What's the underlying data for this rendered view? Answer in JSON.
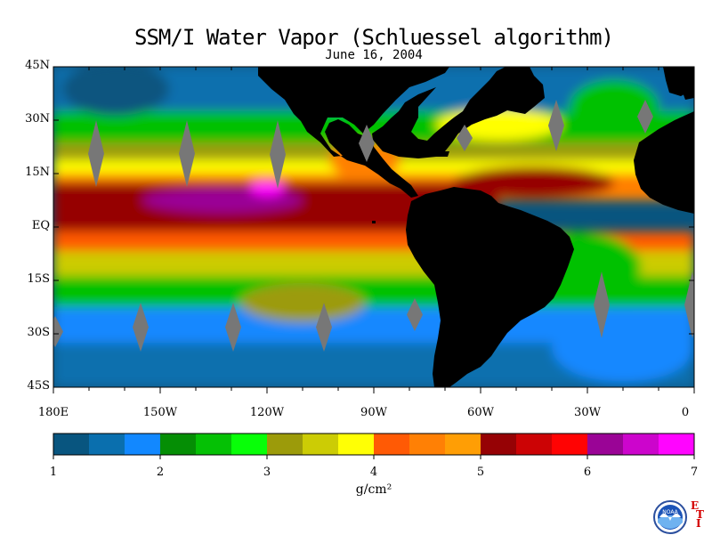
{
  "title": "SSM/I Water Vapor (Schluessel algorithm)",
  "date": "June 16, 2004",
  "map": {
    "lat_labels": [
      "45N",
      "30N",
      "15N",
      "EQ",
      "15S",
      "30S",
      "45S"
    ],
    "lat_values": [
      45,
      30,
      15,
      0,
      -15,
      -30,
      -45
    ],
    "lon_labels": [
      "180E",
      "150W",
      "120W",
      "90W",
      "60W",
      "30W",
      "0"
    ],
    "lon_values": [
      -180,
      -150,
      -120,
      -90,
      -60,
      -30,
      0
    ],
    "lon_range": [
      -180,
      0
    ],
    "lat_range": [
      -45,
      45
    ],
    "land_color": "#000000",
    "swath_gap_color": "#777777"
  },
  "colorbar": {
    "ticks": [
      "1",
      "2",
      "3",
      "4",
      "5",
      "6",
      "7"
    ],
    "range": [
      1,
      7
    ],
    "units": "g/cm²",
    "colors": [
      "#08557f",
      "#0a6fae",
      "#1288ff",
      "#058e05",
      "#05c105",
      "#08ff08",
      "#9c9b0a",
      "#cccc05",
      "#ffff05",
      "#ff5a05",
      "#ff8005",
      "#ff9e05",
      "#960205",
      "#cc0305",
      "#ff0303",
      "#9a0496",
      "#cc05cc",
      "#ff05ff"
    ]
  },
  "logo": {
    "text": "NOAA",
    "icon": "noaa-logo",
    "corner_letters": [
      "E",
      "T",
      "I"
    ]
  }
}
